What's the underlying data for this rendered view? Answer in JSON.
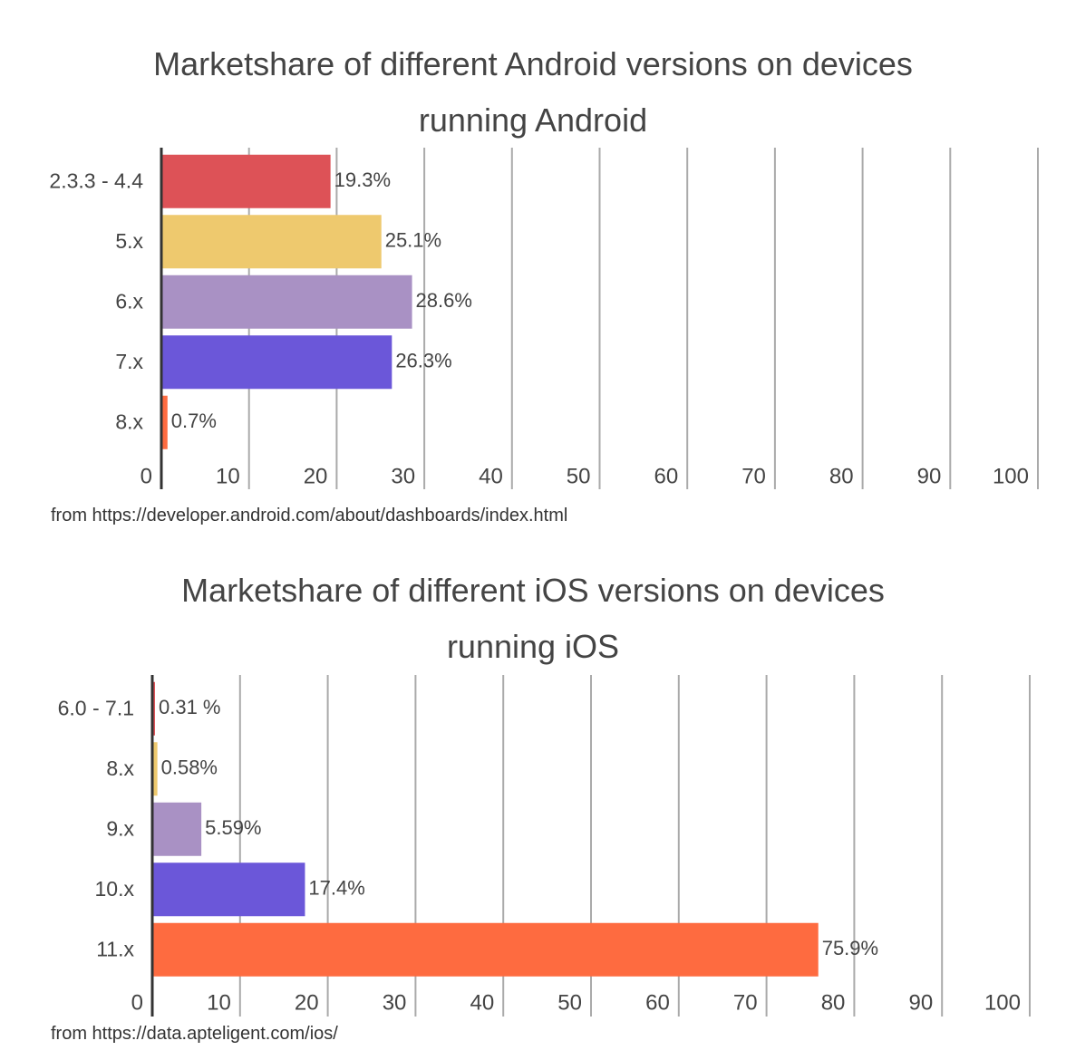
{
  "chart_data": [
    {
      "type": "bar",
      "orientation": "horizontal",
      "title": "Marketshare of different Android versions on devices running Android",
      "categories": [
        "2.3.3 - 4.4",
        "5.x",
        "6.x",
        "7.x",
        "8.x"
      ],
      "values": [
        19.3,
        25.1,
        28.6,
        26.3,
        0.7
      ],
      "value_labels": [
        "19.3%",
        "25.1%",
        "28.6%",
        "26.3%",
        "0.7%"
      ],
      "colors": [
        "#dd5257",
        "#eec96e",
        "#a991c4",
        "#6b57d9",
        "#fe6b40"
      ],
      "xlim": [
        0,
        100
      ],
      "xticks": [
        0,
        10,
        20,
        30,
        40,
        50,
        60,
        70,
        80,
        90,
        100
      ],
      "grid": true,
      "source": "from https://developer.android.com/about/dashboards/index.html"
    },
    {
      "type": "bar",
      "orientation": "horizontal",
      "title": "Marketshare of different iOS versions on devices running iOS",
      "categories": [
        "6.0 - 7.1",
        "8.x",
        "9.x",
        "10.x",
        "11.x"
      ],
      "values": [
        0.31,
        0.58,
        5.59,
        17.4,
        75.9
      ],
      "value_labels": [
        "0.31 %",
        "0.58%",
        "5.59%",
        "17.4%",
        "75.9%"
      ],
      "colors": [
        "#dd5257",
        "#eec96e",
        "#a991c4",
        "#6b57d9",
        "#fe6b40"
      ],
      "xlim": [
        0,
        100
      ],
      "xticks": [
        0,
        10,
        20,
        30,
        40,
        50,
        60,
        70,
        80,
        90,
        100
      ],
      "grid": true,
      "source": "from https://data.apteligent.com/ios/"
    }
  ]
}
